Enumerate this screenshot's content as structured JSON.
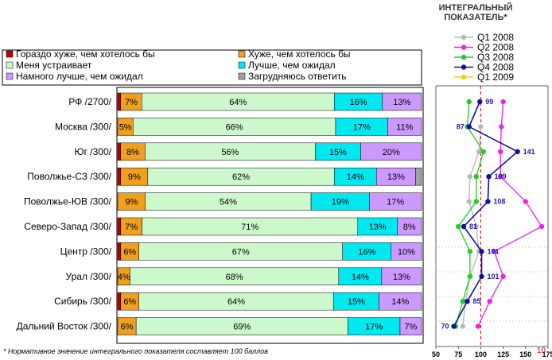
{
  "chart_data": [
    {
      "type": "stacked-bar-horizontal",
      "legend": [
        {
          "name": "Гораздо хуже, чем хотелось бы",
          "color": "#c00000"
        },
        {
          "name": "Хуже, чем хотелось бы",
          "color": "#f0a020"
        },
        {
          "name": "Меня устраивает",
          "color": "#ccf8cc"
        },
        {
          "name": "Лучше, чем ожидал",
          "color": "#00e8f0"
        },
        {
          "name": "Намного лучше, чем ожидал",
          "color": "#cc99ff"
        },
        {
          "name": "Загрудняюсь ответить",
          "color": "#a0a0a0"
        }
      ],
      "categories": [
        "РФ /2700/",
        "Москва /300/",
        "Юг /300/",
        "Поволжье-СЗ /300/",
        "Поволжье-ЮВ /300/",
        "Северо-Запад /300/",
        "Центр /300/",
        "Урал /300/",
        "Сибирь /300/",
        "Дальний Восток /300/"
      ],
      "values": [
        [
          1,
          7,
          64,
          16,
          13,
          0
        ],
        [
          0,
          5,
          66,
          17,
          11,
          0
        ],
        [
          1,
          8,
          56,
          15,
          20,
          0
        ],
        [
          1,
          9,
          62,
          14,
          13,
          2
        ],
        [
          0,
          9,
          54,
          19,
          17,
          0
        ],
        [
          1,
          7,
          71,
          13,
          8,
          0
        ],
        [
          1,
          6,
          67,
          16,
          10,
          0
        ],
        [
          0,
          4,
          68,
          14,
          13,
          0
        ],
        [
          1,
          6,
          64,
          15,
          14,
          0
        ],
        [
          0,
          6,
          69,
          17,
          7,
          0
        ]
      ],
      "labels": [
        [
          "",
          "7%",
          "64%",
          "16%",
          "13%",
          ""
        ],
        [
          "",
          "5%",
          "66%",
          "17%",
          "11%",
          ""
        ],
        [
          "",
          "8%",
          "56%",
          "15%",
          "20%",
          ""
        ],
        [
          "",
          "9%",
          "62%",
          "14%",
          "13%",
          ""
        ],
        [
          "",
          "9%",
          "54%",
          "19%",
          "17%",
          ""
        ],
        [
          "",
          "7%",
          "71%",
          "13%",
          "8%",
          ""
        ],
        [
          "",
          "6%",
          "67%",
          "16%",
          "10%",
          ""
        ],
        [
          "",
          "4%",
          "68%",
          "14%",
          "13%",
          ""
        ],
        [
          "",
          "6%",
          "64%",
          "15%",
          "14%",
          ""
        ],
        [
          "",
          "6%",
          "69%",
          "17%",
          "7%",
          ""
        ]
      ]
    },
    {
      "type": "line",
      "orientation": "vertical-profile",
      "title": "ИНТЕГРАЛЬНЫЙ ПОКАЗАТЕЛЬ*",
      "xlim": [
        50,
        175
      ],
      "xticks": [
        "50",
        "75",
        "100",
        "125",
        "150",
        "175"
      ],
      "reference_value": 100,
      "corner_label": "10",
      "series": [
        {
          "name": "Q1 2008",
          "color": "#b8b8b8",
          "values": [
            null,
            100,
            98,
            88,
            87,
            95,
            98,
            88,
            83,
            80
          ]
        },
        {
          "name": "Q2 2008",
          "color": "#ee22ee",
          "values": [
            125,
            123,
            122,
            122,
            150,
            168,
            115,
            125,
            110,
            97
          ]
        },
        {
          "name": "Q3 2008",
          "color": "#22cc22",
          "values": [
            87,
            85,
            103,
            95,
            95,
            75,
            88,
            88,
            80,
            72
          ]
        },
        {
          "name": "Q4 2008",
          "color": "#1010a0",
          "values": [
            99,
            87,
            141,
            109,
            108,
            81,
            101,
            101,
            85,
            70
          ]
        },
        {
          "name": "Q1 2009",
          "color": "#ffcc00",
          "values": [
            null,
            null,
            null,
            null,
            null,
            null,
            null,
            null,
            null,
            null
          ]
        }
      ],
      "point_labels": [
        "99",
        "87",
        "141",
        "109",
        "108",
        "81",
        "101",
        "101",
        "85",
        "70"
      ]
    }
  ],
  "footnote": "* Нормативное значение интегрального показателя составляет 100 баллов"
}
